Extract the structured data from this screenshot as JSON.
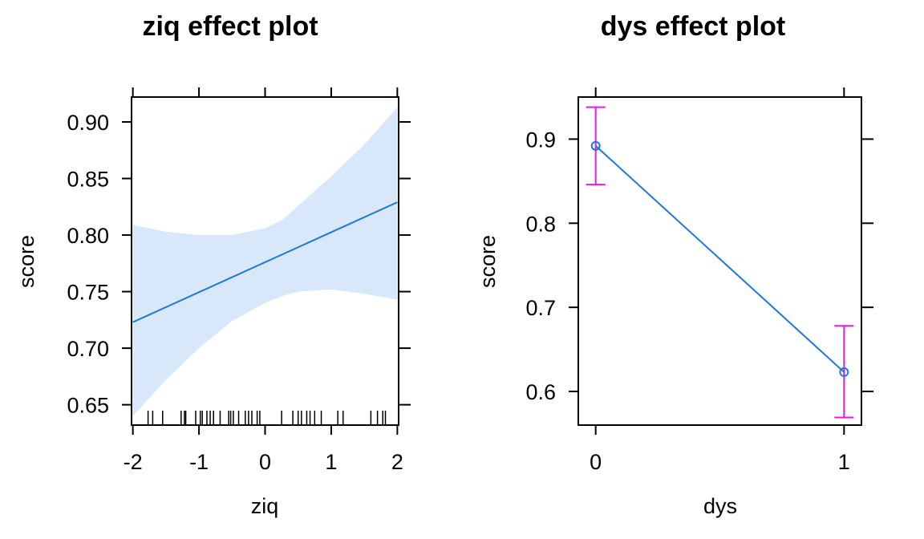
{
  "colors": {
    "line": "#1f78d8",
    "band": "#d8e8fa",
    "errorbar": "#e619e6",
    "axis": "#000000"
  },
  "chart_data": [
    {
      "type": "line",
      "title": "ziq effect plot",
      "xlabel": "ziq",
      "ylabel": "score",
      "xlim": [
        -2.02,
        2.02
      ],
      "ylim": [
        0.632,
        0.922
      ],
      "xticks": [
        -2,
        -1,
        0,
        1,
        2
      ],
      "xtick_labels": [
        "-2",
        "-1",
        "0",
        "1",
        "2"
      ],
      "yticks": [
        0.65,
        0.7,
        0.75,
        0.8,
        0.85,
        0.9
      ],
      "ytick_labels": [
        "0.65",
        "0.70",
        "0.75",
        "0.80",
        "0.85",
        "0.90"
      ],
      "line": {
        "x": [
          -2,
          2
        ],
        "y": [
          0.723,
          0.829
        ]
      },
      "band": {
        "x": [
          -2,
          -1.5,
          -1,
          -0.5,
          0,
          0.25,
          0.5,
          1,
          1.5,
          2
        ],
        "lower": [
          0.64,
          0.672,
          0.7,
          0.724,
          0.74,
          0.746,
          0.75,
          0.752,
          0.748,
          0.743
        ],
        "upper": [
          0.809,
          0.803,
          0.8,
          0.8,
          0.806,
          0.813,
          0.826,
          0.852,
          0.88,
          0.913
        ]
      },
      "rug": [
        -1.77,
        -1.7,
        -1.55,
        -1.27,
        -1.22,
        -1.2,
        -1.05,
        -0.98,
        -0.95,
        -0.88,
        -0.83,
        -0.78,
        -0.68,
        -0.55,
        -0.52,
        -0.48,
        -0.4,
        -0.3,
        -0.25,
        -0.2,
        -0.12,
        -0.08,
        0.25,
        0.42,
        0.5,
        0.55,
        0.63,
        0.68,
        0.75,
        0.85,
        1.1,
        1.18,
        1.6,
        1.7,
        1.78,
        1.82
      ]
    },
    {
      "type": "line",
      "title": "dys effect plot",
      "xlabel": "dys",
      "ylabel": "score",
      "xlim": [
        -0.07,
        1.07
      ],
      "ylim": [
        0.56,
        0.95
      ],
      "xticks": [
        0,
        1
      ],
      "xtick_labels": [
        "0",
        "1"
      ],
      "yticks": [
        0.6,
        0.7,
        0.8,
        0.9
      ],
      "ytick_labels": [
        "0.6",
        "0.7",
        "0.8",
        "0.9"
      ],
      "points": {
        "x": [
          0,
          1
        ],
        "y": [
          0.892,
          0.623
        ],
        "lower": [
          0.846,
          0.569
        ],
        "upper": [
          0.938,
          0.678
        ]
      }
    }
  ]
}
